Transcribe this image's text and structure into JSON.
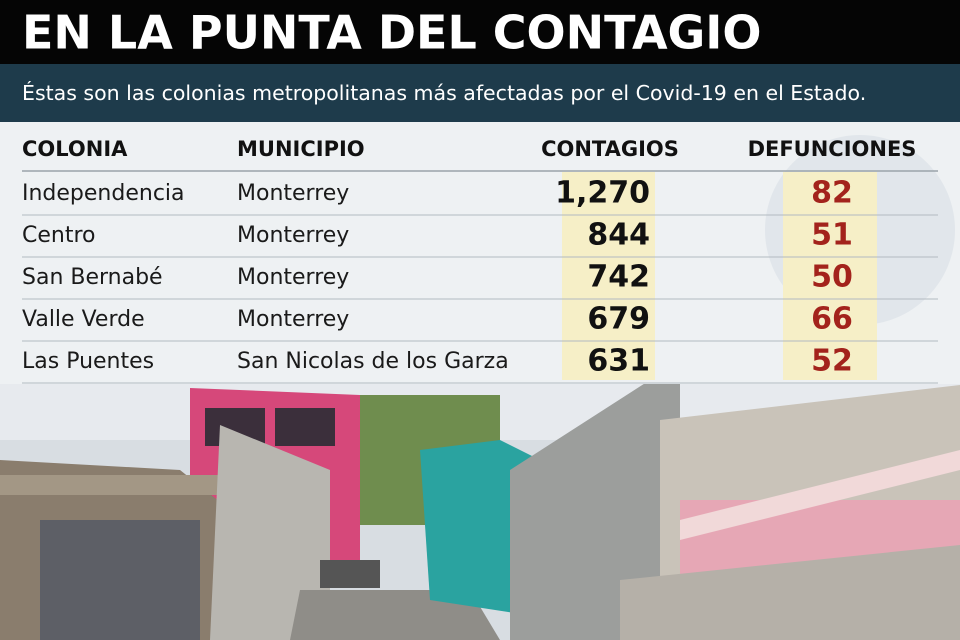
{
  "header": {
    "title": "EN LA PUNTA DEL CONTAGIO",
    "subtitle": "Éstas son las colonias metropolitanas más afectadas por el Covid-19 en el Estado."
  },
  "table": {
    "columns": [
      "COLONIA",
      "MUNICIPIO",
      "CONTAGIOS",
      "DEFUNCIONES"
    ],
    "rows": [
      [
        "Independencia",
        "Monterrey",
        "1,270",
        "82"
      ],
      [
        "Centro",
        "Monterrey",
        "844",
        "51"
      ],
      [
        "San Bernabé",
        "Monterrey",
        "742",
        "50"
      ],
      [
        "Valle Verde",
        "Monterrey",
        "679",
        "66"
      ],
      [
        "Las Puentes",
        "San Nicolas de los Garza",
        "631",
        "52"
      ]
    ]
  }
}
